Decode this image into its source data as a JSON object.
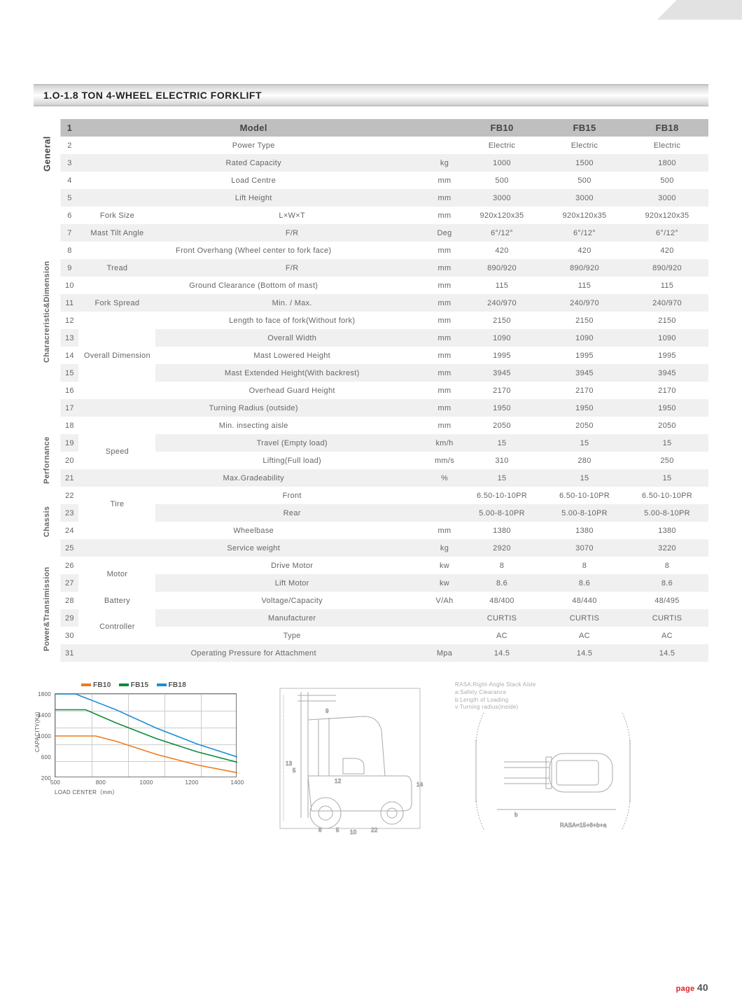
{
  "title": "1.O-1.8 TON 4-WHEEL ELECTRIC FORKLIFT",
  "page_label": "page",
  "page_number": "40",
  "columns": {
    "model": "Model",
    "m1": "FB10",
    "m2": "FB15",
    "m3": "FB18"
  },
  "sections": {
    "general": "General",
    "char": "Characreristic&Dimension",
    "perf": "Perfornance",
    "chassis": "Chassis",
    "power": "Power&Transimission"
  },
  "rows": [
    {
      "n": "1"
    },
    {
      "n": "2",
      "label": "Power Type",
      "unit": "",
      "v": [
        "Electric",
        "Electric",
        "Electric"
      ]
    },
    {
      "n": "3",
      "label": "Rated Capacity",
      "unit": "kg",
      "v": [
        "1000",
        "1500",
        "1800"
      ]
    },
    {
      "n": "4",
      "label": "Load Centre",
      "unit": "mm",
      "v": [
        "500",
        "500",
        "500"
      ]
    },
    {
      "n": "5",
      "label": "Lift Height",
      "unit": "mm",
      "v": [
        "3000",
        "3000",
        "3000"
      ]
    },
    {
      "n": "6",
      "sub": "Fork Size",
      "label": "L×W×T",
      "unit": "mm",
      "v": [
        "920x120x35",
        "920x120x35",
        "920x120x35"
      ]
    },
    {
      "n": "7",
      "sub": "Mast Tilt Angle",
      "label": "F/R",
      "unit": "Deg",
      "v": [
        "6°/12°",
        "6°/12°",
        "6°/12°"
      ]
    },
    {
      "n": "8",
      "label": "Front Overhang (Wheel center to fork face)",
      "unit": "mm",
      "v": [
        "420",
        "420",
        "420"
      ]
    },
    {
      "n": "9",
      "sub": "Tread",
      "label": "F/R",
      "unit": "mm",
      "v": [
        "890/920",
        "890/920",
        "890/920"
      ]
    },
    {
      "n": "10",
      "label": "Ground Clearance (Bottom of mast)",
      "unit": "mm",
      "v": [
        "115",
        "115",
        "115"
      ]
    },
    {
      "n": "11",
      "sub": "Fork Spread",
      "label": "Min. / Max.",
      "unit": "mm",
      "v": [
        "240/970",
        "240/970",
        "240/970"
      ]
    },
    {
      "n": "12",
      "label": "Length to face of fork(Without fork)",
      "unit": "mm",
      "v": [
        "2150",
        "2150",
        "2150"
      ]
    },
    {
      "n": "13",
      "label": "Overall Width",
      "unit": "mm",
      "v": [
        "1090",
        "1090",
        "1090"
      ]
    },
    {
      "n": "14",
      "sub": "Overall Dimension",
      "label": "Mast Lowered Height",
      "unit": "mm",
      "v": [
        "1995",
        "1995",
        "1995"
      ]
    },
    {
      "n": "15",
      "label": "Mast Extended Height(With backrest)",
      "unit": "mm",
      "v": [
        "3945",
        "3945",
        "3945"
      ]
    },
    {
      "n": "16",
      "label": "Overhead Guard Height",
      "unit": "mm",
      "v": [
        "2170",
        "2170",
        "2170"
      ]
    },
    {
      "n": "17",
      "label": "Turning Radius (outside)",
      "unit": "mm",
      "v": [
        "1950",
        "1950",
        "1950"
      ]
    },
    {
      "n": "18",
      "label": "Min. insecting aisle",
      "unit": "mm",
      "v": [
        "2050",
        "2050",
        "2050"
      ]
    },
    {
      "n": "19",
      "label": "Travel (Empty load)",
      "unit": "km/h",
      "v": [
        "15",
        "15",
        "15"
      ]
    },
    {
      "n": "20",
      "sub": "Speed",
      "label": "Lifting(Full load)",
      "unit": "mm/s",
      "v": [
        "310",
        "280",
        "250"
      ]
    },
    {
      "n": "21",
      "label": "Max.Gradeability",
      "unit": "%",
      "v": [
        "15",
        "15",
        "15"
      ]
    },
    {
      "n": "22",
      "label": "Front",
      "unit": "",
      "v": [
        "6.50-10-10PR",
        "6.50-10-10PR",
        "6.50-10-10PR"
      ]
    },
    {
      "n": "23",
      "sub": "Tire",
      "label": "Rear",
      "unit": "",
      "v": [
        "5.00-8-10PR",
        "5.00-8-10PR",
        "5.00-8-10PR"
      ]
    },
    {
      "n": "24",
      "label": "Wheelbase",
      "unit": "mm",
      "v": [
        "1380",
        "1380",
        "1380"
      ]
    },
    {
      "n": "25",
      "label": "Service weight",
      "unit": "kg",
      "v": [
        "2920",
        "3070",
        "3220"
      ]
    },
    {
      "n": "26",
      "label": "Drive Motor",
      "unit": "kw",
      "v": [
        "8",
        "8",
        "8"
      ]
    },
    {
      "n": "27",
      "sub": "Motor",
      "label": "Lift Motor",
      "unit": "kw",
      "v": [
        "8.6",
        "8.6",
        "8.6"
      ]
    },
    {
      "n": "28",
      "sub": "Battery",
      "label": "Voltage/Capacity",
      "unit": "V/Ah",
      "v": [
        "48/400",
        "48/440",
        "48/495"
      ]
    },
    {
      "n": "29",
      "label": "Manufacturer",
      "unit": "",
      "v": [
        "CURTIS",
        "CURTIS",
        "CURTIS"
      ]
    },
    {
      "n": "30",
      "sub": "Controller",
      "label": "Type",
      "unit": "",
      "v": [
        "AC",
        "AC",
        "AC"
      ]
    },
    {
      "n": "31",
      "label": "Operating Pressure for Attachment",
      "unit": "Mpa",
      "v": [
        "14.5",
        "14.5",
        "14.5"
      ]
    }
  ],
  "chart": {
    "type": "line",
    "legend": [
      {
        "label": "FB10",
        "color": "#ec7c1d"
      },
      {
        "label": "FB15",
        "color": "#0f8a3a"
      },
      {
        "label": "FB18",
        "color": "#1a8fd6"
      }
    ],
    "x_ticks": [
      "500",
      "800",
      "1000",
      "1200",
      "1400"
    ],
    "y_ticks": [
      "1800",
      "1400",
      "1000",
      "600",
      "200"
    ],
    "x_axis_label": "LOAD CENTER（mm）",
    "y_axis_label": "CAPACITY(Kg)",
    "xlim": [
      500,
      1400
    ],
    "ylim": [
      200,
      1800
    ],
    "series": {
      "fb10": [
        [
          500,
          1000
        ],
        [
          700,
          1000
        ],
        [
          800,
          900
        ],
        [
          1000,
          650
        ],
        [
          1200,
          450
        ],
        [
          1400,
          300
        ]
      ],
      "fb15": [
        [
          500,
          1500
        ],
        [
          650,
          1500
        ],
        [
          800,
          1250
        ],
        [
          1000,
          950
        ],
        [
          1200,
          700
        ],
        [
          1400,
          500
        ]
      ],
      "fb18": [
        [
          500,
          1800
        ],
        [
          600,
          1800
        ],
        [
          800,
          1500
        ],
        [
          1000,
          1150
        ],
        [
          1200,
          850
        ],
        [
          1400,
          600
        ]
      ]
    },
    "grid_color": "#cccccc",
    "border_color": "#777777",
    "background_color": "#ffffff",
    "line_width": 1.6
  },
  "diagram_notes": {
    "l1": "RASA:Right-Angle Stack Aisle",
    "l2": "a:Safety Clearance",
    "l3": "b:Length of Loading",
    "l4": "v:Turning radius(inside)",
    "formula": "RASA=15+6+b+a"
  },
  "diagram_dims": {
    "d1": "13",
    "d2": "5",
    "d3": "12",
    "d4": "14",
    "d5": "6",
    "d6": "5",
    "d7": "22",
    "d8": "10",
    "d9": "9",
    "db": "b"
  }
}
